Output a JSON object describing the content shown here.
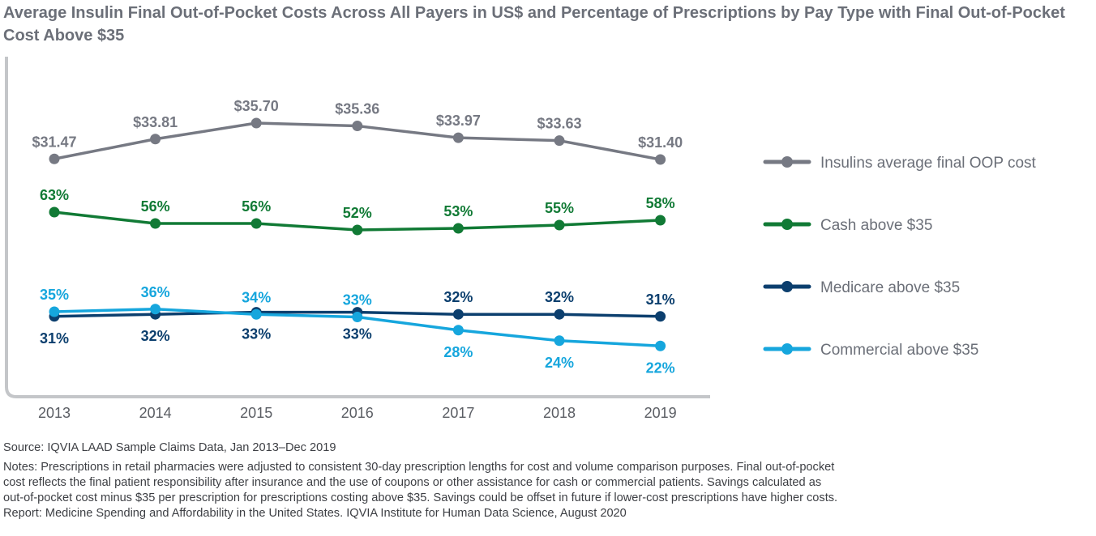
{
  "title": "Average Insulin Final Out-of-Pocket Costs Across All Payers in US$ and Percentage of Prescriptions by Pay Type with Final Out-of-Pocket Cost Above $35",
  "chart_data": {
    "type": "line",
    "title": "Average Insulin Final Out-of-Pocket Costs Across All Payers in US$ and Percentage of Prescriptions by Pay Type with Final Out-of-Pocket Cost Above $35",
    "xlabel": "",
    "ylabel": "",
    "categories": [
      "2013",
      "2014",
      "2015",
      "2016",
      "2017",
      "2018",
      "2019"
    ],
    "grid": false,
    "legend_position": "right",
    "series": [
      {
        "name": "Insulins average final OOP cost",
        "color": "#767983",
        "values": [
          31.47,
          33.81,
          35.7,
          35.36,
          33.97,
          33.63,
          31.4
        ],
        "labels": [
          "$31.47",
          "$33.81",
          "$35.70",
          "$35.36",
          "$33.97",
          "$33.63",
          "$31.40"
        ],
        "label_side": [
          "above",
          "above",
          "above",
          "above",
          "above",
          "above",
          "above"
        ]
      },
      {
        "name": "Cash above $35",
        "color": "#117a35",
        "values": [
          63,
          56,
          56,
          52,
          53,
          55,
          58
        ],
        "labels": [
          "63%",
          "56%",
          "56%",
          "52%",
          "53%",
          "55%",
          "58%"
        ],
        "label_side": [
          "above",
          "above",
          "above",
          "above",
          "above",
          "above",
          "above"
        ]
      },
      {
        "name": "Medicare above $35",
        "color": "#0c3f6e",
        "values": [
          31,
          32,
          33,
          33,
          32,
          32,
          31
        ],
        "labels": [
          "31%",
          "32%",
          "33%",
          "33%",
          "32%",
          "32%",
          "31%"
        ],
        "label_side": [
          "below",
          "below",
          "below",
          "below",
          "above",
          "above",
          "above"
        ]
      },
      {
        "name": "Commercial above $35",
        "color": "#16a6dd",
        "values": [
          35,
          36,
          34,
          33,
          28,
          24,
          22
        ],
        "labels": [
          "35%",
          "36%",
          "34%",
          "33%",
          "28%",
          "24%",
          "22%"
        ],
        "label_side": [
          "above",
          "above",
          "above",
          "above",
          "below",
          "below",
          "below"
        ]
      }
    ]
  },
  "footer": {
    "source": "Source: IQVIA LAAD Sample Claims Data, Jan 2013–Dec 2019",
    "notes": [
      "Notes: Prescriptions in retail pharmacies were adjusted to consistent 30-day prescription lengths for cost and volume comparison purposes. Final out-of-pocket",
      "cost reflects the final patient responsibility after insurance and the use of coupons or other assistance for cash or commercial patients. Savings calculated as",
      "out-of-pocket cost minus $35 per prescription for prescriptions costing above $35. Savings could be offset in future if lower-cost prescriptions have higher costs.",
      "Report: Medicine Spending and Affordability in the United States. IQVIA Institute for Human Data Science, August 2020"
    ]
  }
}
